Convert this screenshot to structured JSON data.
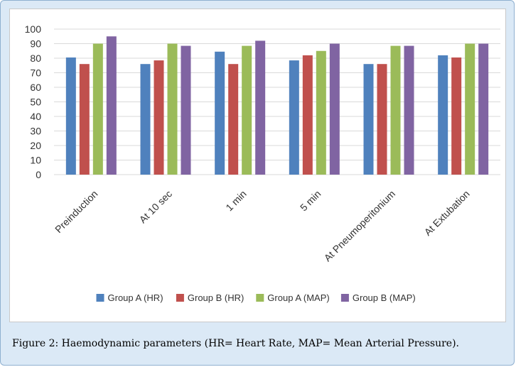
{
  "caption": "Figure 2: Haemodynamic parameters (HR= Heart Rate, MAP= Mean Arterial Pressure).",
  "chart_data": {
    "type": "bar",
    "categories": [
      "Preinduction",
      "At 10 sec",
      "1 min",
      "5 min",
      "At Pneumoperitonium",
      "At Extubation"
    ],
    "series": [
      {
        "name": "Group A (HR)",
        "color": "#4f81bd",
        "values": [
          80.5,
          76,
          84.5,
          78.5,
          76,
          82
        ]
      },
      {
        "name": "Group B (HR)",
        "color": "#c0504d",
        "values": [
          76,
          78.5,
          76,
          82,
          76,
          80.5
        ]
      },
      {
        "name": "Group A (MAP)",
        "color": "#9bbb59",
        "values": [
          90,
          90,
          88.5,
          85,
          88.5,
          90
        ]
      },
      {
        "name": "Group B (MAP)",
        "color": "#8064a2",
        "values": [
          95,
          88.5,
          92,
          90,
          88.5,
          90
        ]
      }
    ],
    "yticks": [
      0,
      10,
      20,
      30,
      40,
      50,
      60,
      70,
      80,
      90,
      100
    ],
    "ylim": [
      0,
      100
    ],
    "grid": true,
    "legend": "bottom",
    "title": "",
    "xlabel": "",
    "ylabel": ""
  }
}
